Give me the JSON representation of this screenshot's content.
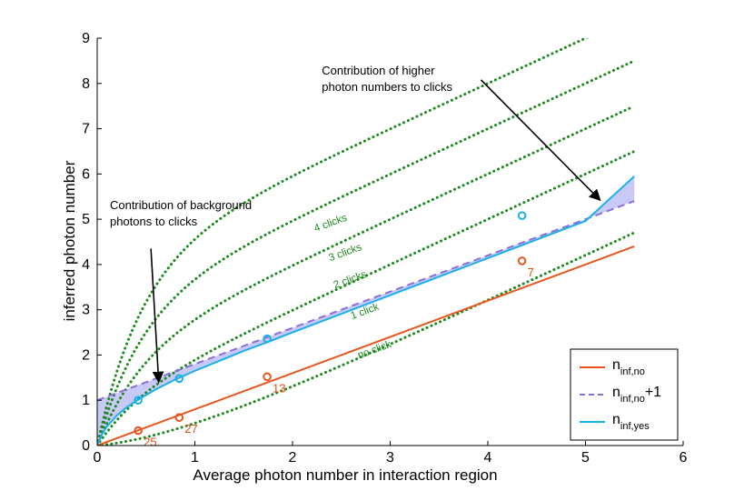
{
  "chart_data": {
    "type": "line",
    "xlabel": "Average photon number in interaction region",
    "ylabel": "inferred photon number",
    "xlim": [
      0,
      6
    ],
    "ylim": [
      0,
      9
    ],
    "xticks": [
      0,
      1,
      2,
      3,
      4,
      5,
      6
    ],
    "yticks": [
      0,
      1,
      2,
      3,
      4,
      5,
      6,
      7,
      8,
      9
    ],
    "grid": false,
    "legend_position": "bottom-right",
    "legend": [
      {
        "main": "n",
        "sub": "inf,no",
        "suffix": "",
        "color": "#e8561f",
        "style": "solid"
      },
      {
        "main": "n",
        "sub": "inf,no",
        "suffix": "+1",
        "color": "#8a6fdc",
        "style": "dashed"
      },
      {
        "main": "n",
        "sub": "inf,yes",
        "suffix": "",
        "color": "#1ab0ea",
        "style": "solid"
      }
    ],
    "series": [
      {
        "name": "n_inf,no",
        "color": "#e8561f",
        "style": "solid",
        "x": [
          0,
          5.5
        ],
        "y": [
          0,
          4.4
        ]
      },
      {
        "name": "n_inf,no +1",
        "color": "#8a6fdc",
        "style": "dashed",
        "x": [
          0,
          5.5
        ],
        "y": [
          1.0,
          5.4
        ]
      },
      {
        "name": "n_inf,yes",
        "color": "#1ab0ea",
        "style": "solid",
        "x": [
          0,
          0.05,
          0.1,
          0.2,
          0.3,
          0.4,
          0.6,
          0.8,
          1.0,
          1.25,
          1.5,
          1.75,
          2.0,
          2.5,
          3.0,
          3.5,
          4.0,
          4.5,
          5.0,
          5.5
        ],
        "y": [
          0,
          0.25,
          0.42,
          0.66,
          0.84,
          0.99,
          1.24,
          1.46,
          1.65,
          1.87,
          2.09,
          2.29,
          2.5,
          2.91,
          3.32,
          3.73,
          4.14,
          4.55,
          4.96,
          5.95
        ]
      }
    ],
    "reference_curves": [
      {
        "label": "no click",
        "k": 0,
        "color": "#1a8a1a",
        "style": "dotted"
      },
      {
        "label": "1 click",
        "k": 1,
        "color": "#1a8a1a",
        "style": "dotted"
      },
      {
        "label": "2 clicks",
        "k": 2,
        "color": "#1a8a1a",
        "style": "dotted"
      },
      {
        "label": "3 clicks",
        "k": 3,
        "color": "#1a8a1a",
        "style": "dotted"
      },
      {
        "label": "4 clicks",
        "k": 4,
        "color": "#1a8a1a",
        "style": "dotted"
      }
    ],
    "curve_label_points": [
      {
        "label": "4 clicks",
        "x": 2.4,
        "y": 4.85
      },
      {
        "label": "3 clicks",
        "x": 2.55,
        "y": 4.2
      },
      {
        "label": "2 clicks",
        "x": 2.6,
        "y": 3.6
      },
      {
        "label": "1 click",
        "x": 2.75,
        "y": 2.9
      },
      {
        "label": "no click",
        "x": 2.85,
        "y": 2.05
      }
    ],
    "data_points": [
      {
        "series": "no",
        "x": 0.42,
        "y": 0.33,
        "label": "25",
        "color": "#e8561f"
      },
      {
        "series": "no",
        "x": 0.84,
        "y": 0.62,
        "label": "27",
        "color": "#e8561f"
      },
      {
        "series": "no",
        "x": 1.74,
        "y": 1.52,
        "label": "13",
        "color": "#e8561f"
      },
      {
        "series": "no",
        "x": 4.35,
        "y": 4.08,
        "label": "7",
        "color": "#e8561f"
      },
      {
        "series": "yes",
        "x": 0.42,
        "y": 1.0,
        "label": "",
        "color": "#1ab0ea"
      },
      {
        "series": "yes",
        "x": 0.84,
        "y": 1.48,
        "label": "",
        "color": "#1ab0ea"
      },
      {
        "series": "yes",
        "x": 1.74,
        "y": 2.36,
        "label": "",
        "color": "#1ab0ea"
      },
      {
        "series": "yes",
        "x": 4.35,
        "y": 5.08,
        "label": "",
        "color": "#1ab0ea"
      }
    ],
    "shaded_region_color": "#9c9cf0",
    "annotations": [
      {
        "lines": [
          "Contribution of higher",
          "photon numbers to clicks"
        ],
        "x": 2.3,
        "y": 8.2,
        "arrow_from": [
          3.93,
          8.08
        ],
        "arrow_to": [
          5.15,
          5.42
        ]
      },
      {
        "lines": [
          "Contribution of background",
          "photons to clicks"
        ],
        "x": 0.13,
        "y": 5.22,
        "arrow_from": [
          0.55,
          4.35
        ],
        "arrow_to": [
          0.63,
          1.4
        ]
      }
    ]
  }
}
